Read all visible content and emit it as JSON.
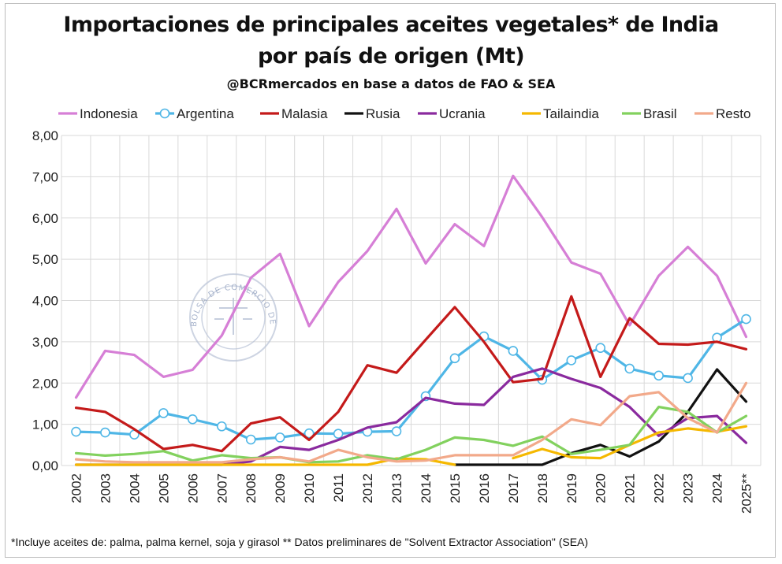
{
  "title_line1": "Importaciones de principales aceites vegetales* de India",
  "title_line2": "por país de origen (Mt)",
  "subtitle": "@BCRmercados en base a datos de FAO & SEA",
  "footnote": "*Incluye aceites de: palma, palma kernel, soja y girasol ** Datos preliminares de \"Solvent Extractor Association\" (SEA)",
  "watermark": {
    "text": "BOLSA DE COMERCIO DE ROSARIO"
  },
  "chart_data": {
    "type": "line",
    "categories": [
      "2002",
      "2003",
      "2004",
      "2005",
      "2006",
      "2007",
      "2008",
      "2009",
      "2010",
      "2011",
      "2012",
      "2013",
      "2014",
      "2015",
      "2016",
      "2017",
      "2018",
      "2019",
      "2020",
      "2021",
      "2022",
      "2023",
      "2024",
      "2025**"
    ],
    "ylim": [
      0,
      8
    ],
    "yticks": [
      "0,00",
      "1,00",
      "2,00",
      "3,00",
      "4,00",
      "5,00",
      "6,00",
      "7,00",
      "8,00"
    ],
    "grid": true,
    "legend_position": "top",
    "series": [
      {
        "name": "Indonesia",
        "color": "#d67fd6",
        "marker": "none",
        "values": [
          1.65,
          2.78,
          2.68,
          2.15,
          2.32,
          3.15,
          4.55,
          5.13,
          3.38,
          4.45,
          5.2,
          6.22,
          4.9,
          5.85,
          5.32,
          7.02,
          6.02,
          4.92,
          4.65,
          3.4,
          4.6,
          5.3,
          4.6,
          3.12
        ]
      },
      {
        "name": "Argentina",
        "color": "#4fb6e6",
        "marker": "circle",
        "values": [
          0.82,
          0.8,
          0.75,
          1.27,
          1.12,
          0.95,
          0.63,
          0.68,
          0.78,
          0.77,
          0.82,
          0.83,
          1.68,
          2.6,
          3.13,
          2.78,
          2.08,
          2.55,
          2.85,
          2.35,
          2.18,
          2.12,
          3.1,
          3.55
        ]
      },
      {
        "name": "Malasia",
        "color": "#c41a1a",
        "marker": "none",
        "values": [
          1.4,
          1.3,
          0.88,
          0.4,
          0.5,
          0.35,
          1.02,
          1.17,
          0.62,
          1.3,
          2.43,
          2.25,
          3.05,
          3.84,
          3.0,
          2.02,
          2.1,
          4.1,
          2.15,
          3.57,
          2.95,
          2.93,
          3.0,
          2.82
        ]
      },
      {
        "name": "Rusia",
        "color": "#111111",
        "marker": "none",
        "values": [
          null,
          null,
          null,
          null,
          null,
          null,
          null,
          null,
          null,
          null,
          null,
          null,
          null,
          0.02,
          0.02,
          0.02,
          0.02,
          0.3,
          0.5,
          0.22,
          0.58,
          1.3,
          2.33,
          1.55
        ]
      },
      {
        "name": "Ucrania",
        "color": "#8a2a9e",
        "marker": "none",
        "values": [
          0.02,
          0.02,
          0.02,
          0.02,
          0.02,
          0.02,
          0.1,
          0.45,
          0.38,
          0.62,
          0.92,
          1.05,
          1.64,
          1.5,
          1.47,
          2.15,
          2.35,
          2.1,
          1.88,
          1.42,
          0.72,
          1.15,
          1.2,
          0.55
        ]
      },
      {
        "name": "Tailaindia",
        "color": "#f5b800",
        "marker": "none",
        "values": [
          0.02,
          0.02,
          0.02,
          0.02,
          0.02,
          0.02,
          0.02,
          0.02,
          0.02,
          0.02,
          0.02,
          0.17,
          0.15,
          0.02,
          null,
          0.18,
          0.4,
          0.2,
          0.18,
          0.5,
          0.8,
          0.9,
          0.82,
          0.95
        ]
      },
      {
        "name": "Brasil",
        "color": "#82d15e",
        "marker": "none",
        "values": [
          0.3,
          0.24,
          0.28,
          0.35,
          0.12,
          0.25,
          0.18,
          0.2,
          0.08,
          0.1,
          0.25,
          0.15,
          0.38,
          0.68,
          0.62,
          0.48,
          0.7,
          0.28,
          0.38,
          0.5,
          1.42,
          1.3,
          0.8,
          1.2
        ]
      },
      {
        "name": "Resto",
        "color": "#f2a98a",
        "marker": "none",
        "values": [
          0.15,
          0.1,
          0.08,
          0.08,
          0.08,
          0.08,
          0.15,
          0.2,
          0.1,
          0.38,
          0.2,
          0.1,
          0.12,
          0.25,
          0.25,
          0.25,
          0.62,
          1.12,
          0.98,
          1.68,
          1.78,
          1.15,
          0.8,
          2.0
        ]
      }
    ]
  }
}
